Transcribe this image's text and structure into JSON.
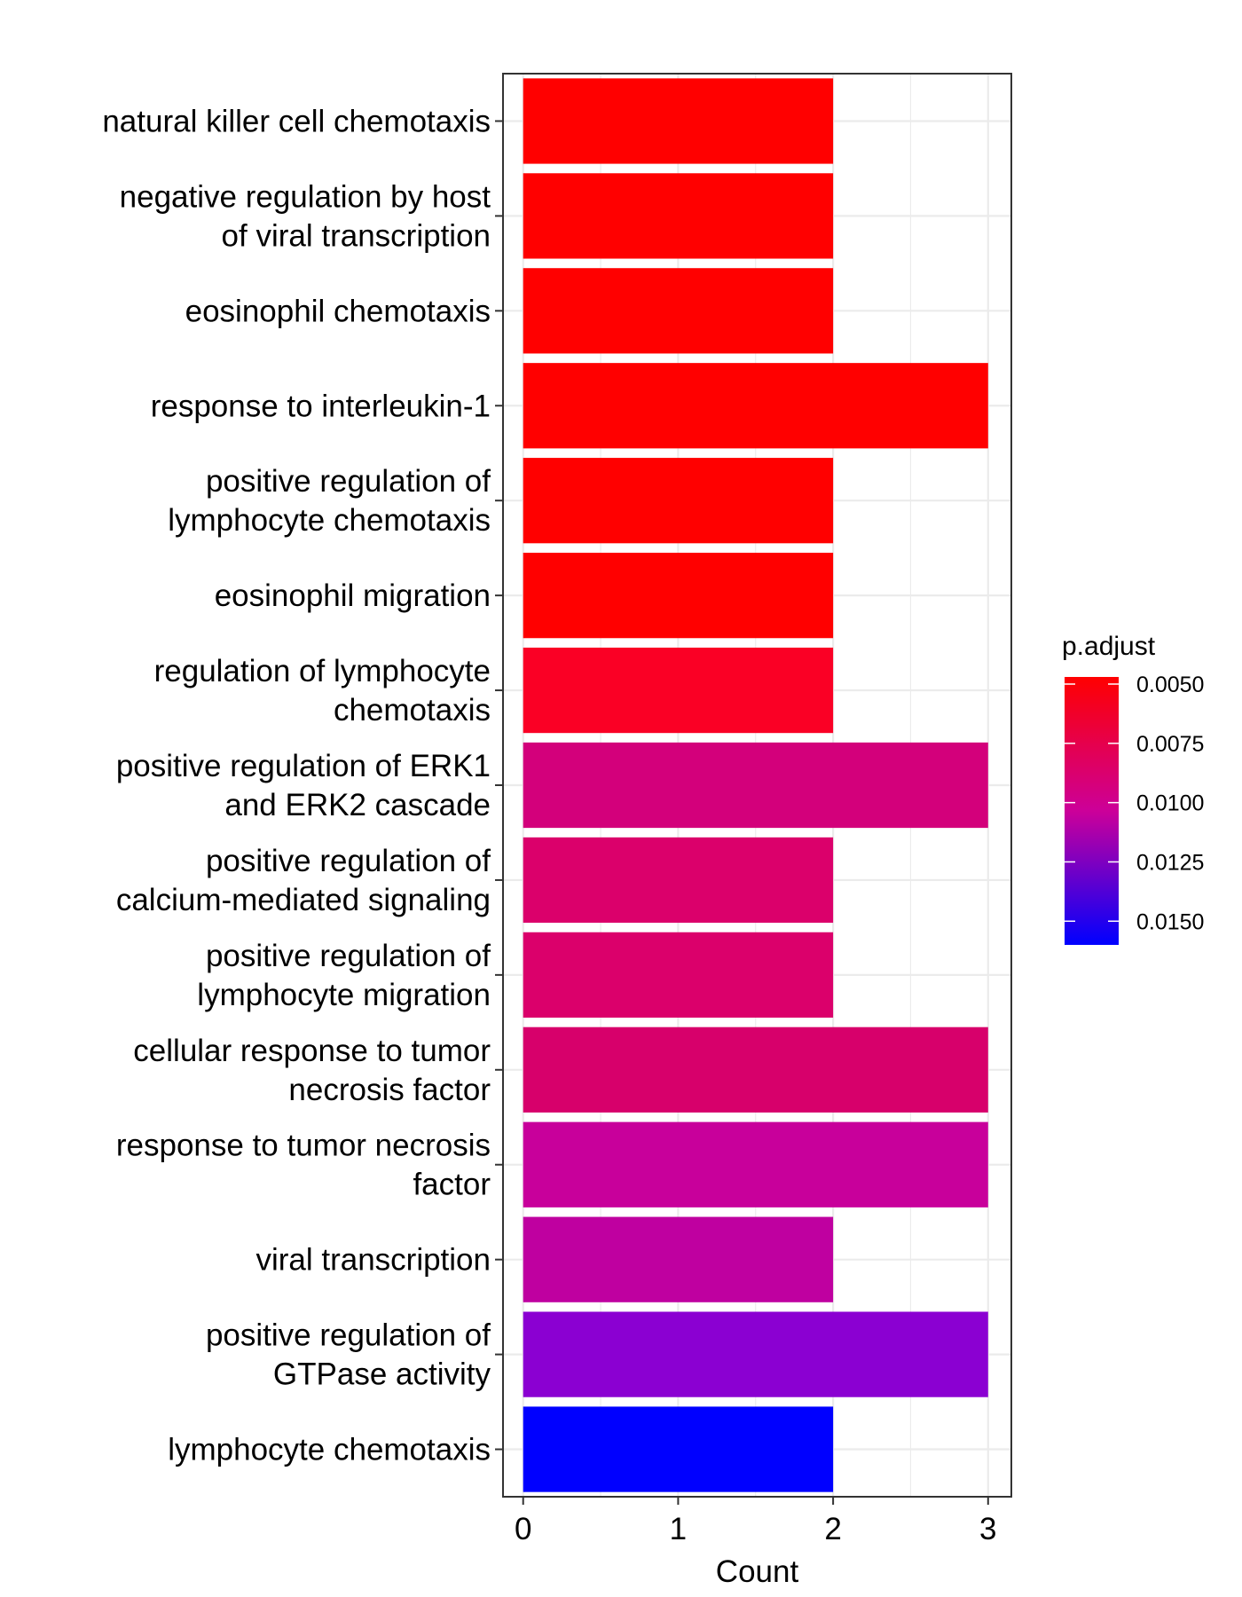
{
  "chart_data": {
    "type": "bar",
    "orientation": "horizontal",
    "categories": [
      [
        "natural killer cell chemotaxis"
      ],
      [
        "negative regulation by host",
        "of viral transcription"
      ],
      [
        "eosinophil chemotaxis"
      ],
      [
        "response to interleukin-1"
      ],
      [
        "positive regulation of",
        "lymphocyte chemotaxis"
      ],
      [
        "eosinophil migration"
      ],
      [
        "regulation of lymphocyte",
        "chemotaxis"
      ],
      [
        "positive regulation of ERK1",
        "and ERK2 cascade"
      ],
      [
        "positive regulation of",
        "calcium-mediated signaling"
      ],
      [
        "positive regulation of",
        "lymphocyte migration"
      ],
      [
        "cellular response to tumor",
        "necrosis factor"
      ],
      [
        "response to tumor necrosis",
        "factor"
      ],
      [
        "viral transcription"
      ],
      [
        "positive regulation of",
        "GTPase activity"
      ],
      [
        "lymphocyte chemotaxis"
      ]
    ],
    "values": [
      2,
      2,
      2,
      3,
      2,
      2,
      2,
      3,
      2,
      2,
      3,
      3,
      2,
      3,
      2
    ],
    "p_adjust": [
      0.0043,
      0.0044,
      0.0045,
      0.0046,
      0.0047,
      0.0047,
      0.0066,
      0.0112,
      0.0095,
      0.0095,
      0.0096,
      0.011,
      0.0112,
      0.0135,
      0.016
    ],
    "colors": [
      "#ff0000",
      "#ff0000",
      "#ff0000",
      "#ff0000",
      "#ff0000",
      "#ff0000",
      "#fa0025",
      "#d3007b",
      "#db006b",
      "#db006b",
      "#d7006b",
      "#c8009b",
      "#bf00a0",
      "#8b00d2",
      "#0000ff"
    ],
    "xlabel": "Count",
    "ylabel": "",
    "xlim": [
      -0.13,
      3.15
    ],
    "xticks": [
      0,
      1,
      2,
      3
    ],
    "grid": true,
    "legend": {
      "title": "p.adjust",
      "position": "right",
      "range": [
        0.016,
        0.0047
      ],
      "low_color": "#0000ff",
      "high_color": "#ff0000",
      "ticks": [
        0.005,
        0.0075,
        0.01,
        0.0125,
        0.015
      ],
      "tick_labels": [
        "0.0050",
        "0.0075",
        "0.0100",
        "0.0125",
        "0.0150"
      ]
    }
  }
}
